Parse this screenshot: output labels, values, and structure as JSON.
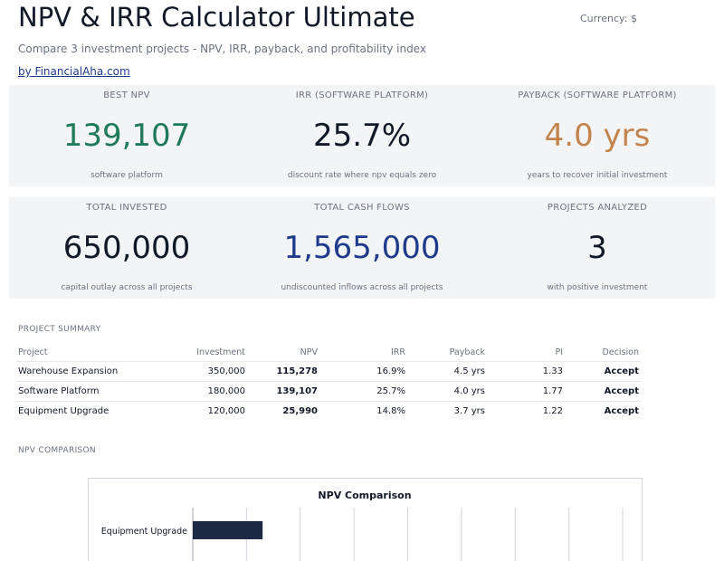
{
  "header": {
    "title": "NPV & IRR Calculator Ultimate",
    "currency": "Currency: $",
    "subtitle": "Compare 3 investment projects - NPV, IRR, payback, and profitability index",
    "link": "by FinancialAha.com"
  },
  "kpis_row1": [
    {
      "label": "BEST NPV",
      "value": "139,107",
      "note": "software platform",
      "color": "#1f7a5a"
    },
    {
      "label": "IRR (SOFTWARE PLATFORM)",
      "value": "25.7%",
      "note": "discount rate where npv equals zero",
      "color": "#111827"
    },
    {
      "label": "PAYBACK (SOFTWARE PLATFORM)",
      "value": "4.0 yrs",
      "note": "years to recover initial investment",
      "color": "#c2844c"
    }
  ],
  "kpis_row2": [
    {
      "label": "TOTAL INVESTED",
      "value": "650,000",
      "note": "capital outlay across all projects",
      "color": "#111827"
    },
    {
      "label": "TOTAL CASH FLOWS",
      "value": "1,565,000",
      "note": "undiscounted inflows across all projects",
      "color": "#1e3a8a"
    },
    {
      "label": "PROJECTS ANALYZED",
      "value": "3",
      "note": "with positive investment",
      "color": "#111827"
    }
  ],
  "summary": {
    "heading": "PROJECT SUMMARY",
    "columns": [
      "Project",
      "Investment",
      "NPV",
      "IRR",
      "Payback",
      "PI",
      "Decision"
    ],
    "rows": [
      [
        "Warehouse Expansion",
        "350,000",
        "115,278",
        "16.9%",
        "4.5 yrs",
        "1.33",
        "Accept"
      ],
      [
        "Software Platform",
        "180,000",
        "139,107",
        "25.7%",
        "4.0 yrs",
        "1.77",
        "Accept"
      ],
      [
        "Equipment Upgrade",
        "120,000",
        "25,990",
        "14.8%",
        "3.7 yrs",
        "1.22",
        "Accept"
      ]
    ]
  },
  "comparison": {
    "heading": "NPV COMPARISON"
  },
  "chart_data": {
    "type": "bar",
    "orientation": "horizontal",
    "title": "NPV Comparison",
    "categories": [
      "Equipment Upgrade"
    ],
    "values": [
      25990
    ],
    "xlim": [
      0,
      160000
    ],
    "grid": true,
    "bar_color": "#1e2a44"
  }
}
